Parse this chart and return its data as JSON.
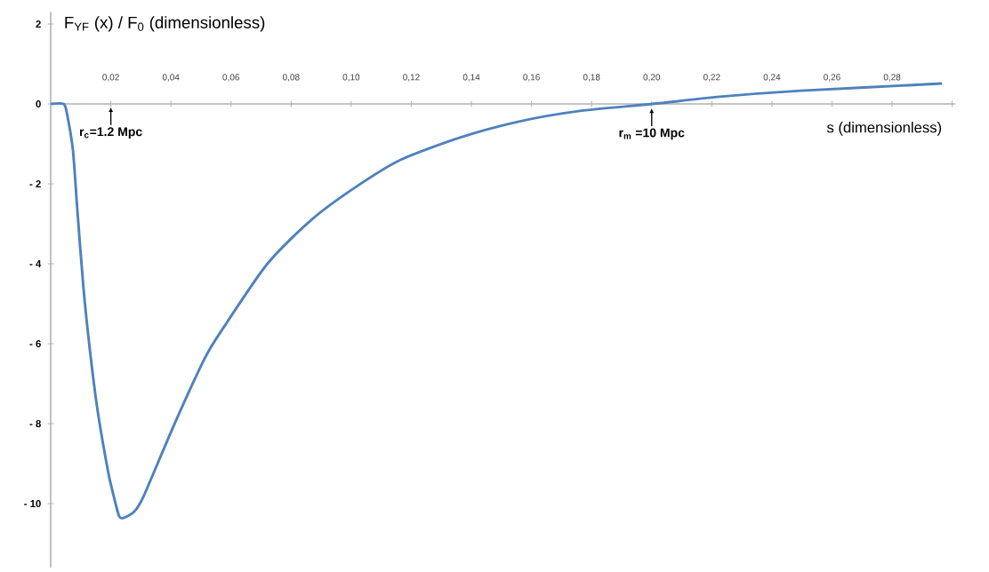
{
  "chart_data": {
    "type": "line",
    "ylabel": "F$_{YF}$ (x) / F$_{0}$      (dimensionless)",
    "xlabel": "s (dimensionless)",
    "annotations": [
      "r$_{c}$=1.2 Mpc",
      {
        "text": "r$_{m}$ =10 Mpc",
        "x": 0.2,
        "y": 0
      }
    ],
    "x": [
      0,
      0.0043,
      0.0054,
      0.0074,
      0.0089,
      0.0109,
      0.013,
      0.0156,
      0.0191,
      0.0207,
      0.0227,
      0.0242,
      0.0278,
      0.0309,
      0.041,
      0.0513,
      0.0573,
      0.0721,
      0.0869,
      0.1017,
      0.1164,
      0.1362,
      0.1558,
      0.1756,
      0.2002,
      0.2227,
      0.2496,
      0.2966
    ],
    "series": [
      {
        "color": "#4f81bd",
        "values": [
          0,
          0,
          -0.24,
          -1.16,
          -2.69,
          -4.6,
          -6.13,
          -7.67,
          -9.2,
          -9.73,
          -10.3,
          -10.36,
          -10.2,
          -9.82,
          -8.04,
          -6.36,
          -5.62,
          -4.0,
          -2.89,
          -2.07,
          -1.4,
          -0.84,
          -0.44,
          -0.18,
          0.0,
          0.18,
          0.33,
          0.51
        ]
      }
    ],
    "xlim": [
      0,
      0.301
    ],
    "ylim": [
      -11.6,
      2.3
    ],
    "xticks": [
      {
        "value": 0.02,
        "label": "0,02"
      },
      {
        "value": 0.04,
        "label": "0,04"
      },
      {
        "value": 0.06,
        "label": "0,06"
      },
      {
        "value": 0.08,
        "label": "0,08"
      },
      {
        "value": 0.1,
        "label": "0,10"
      },
      {
        "value": 0.12,
        "label": "0,12"
      },
      {
        "value": 0.14,
        "label": "0,14"
      },
      {
        "value": 0.16,
        "label": "0,16"
      },
      {
        "value": 0.18,
        "label": "0,18"
      },
      {
        "value": 0.2,
        "label": "0,20"
      },
      {
        "value": 0.22,
        "label": "0,22"
      },
      {
        "value": 0.24,
        "label": "0,24"
      },
      {
        "value": 0.26,
        "label": "0,26"
      },
      {
        "value": 0.28,
        "label": "0,28"
      },
      {
        "value": 0.3,
        "label": null
      }
    ],
    "yticks": [
      2,
      0,
      {
        "value": -2,
        "label": "- 2"
      },
      {
        "value": -4,
        "label": "- 4"
      },
      {
        "value": -6,
        "label": "- 6"
      },
      {
        "value": -8,
        "label": "- 8"
      },
      {
        "value": -10,
        "label": "- 10"
      }
    ],
    "grid": false,
    "marker": "none",
    "line_style": "solid"
  }
}
